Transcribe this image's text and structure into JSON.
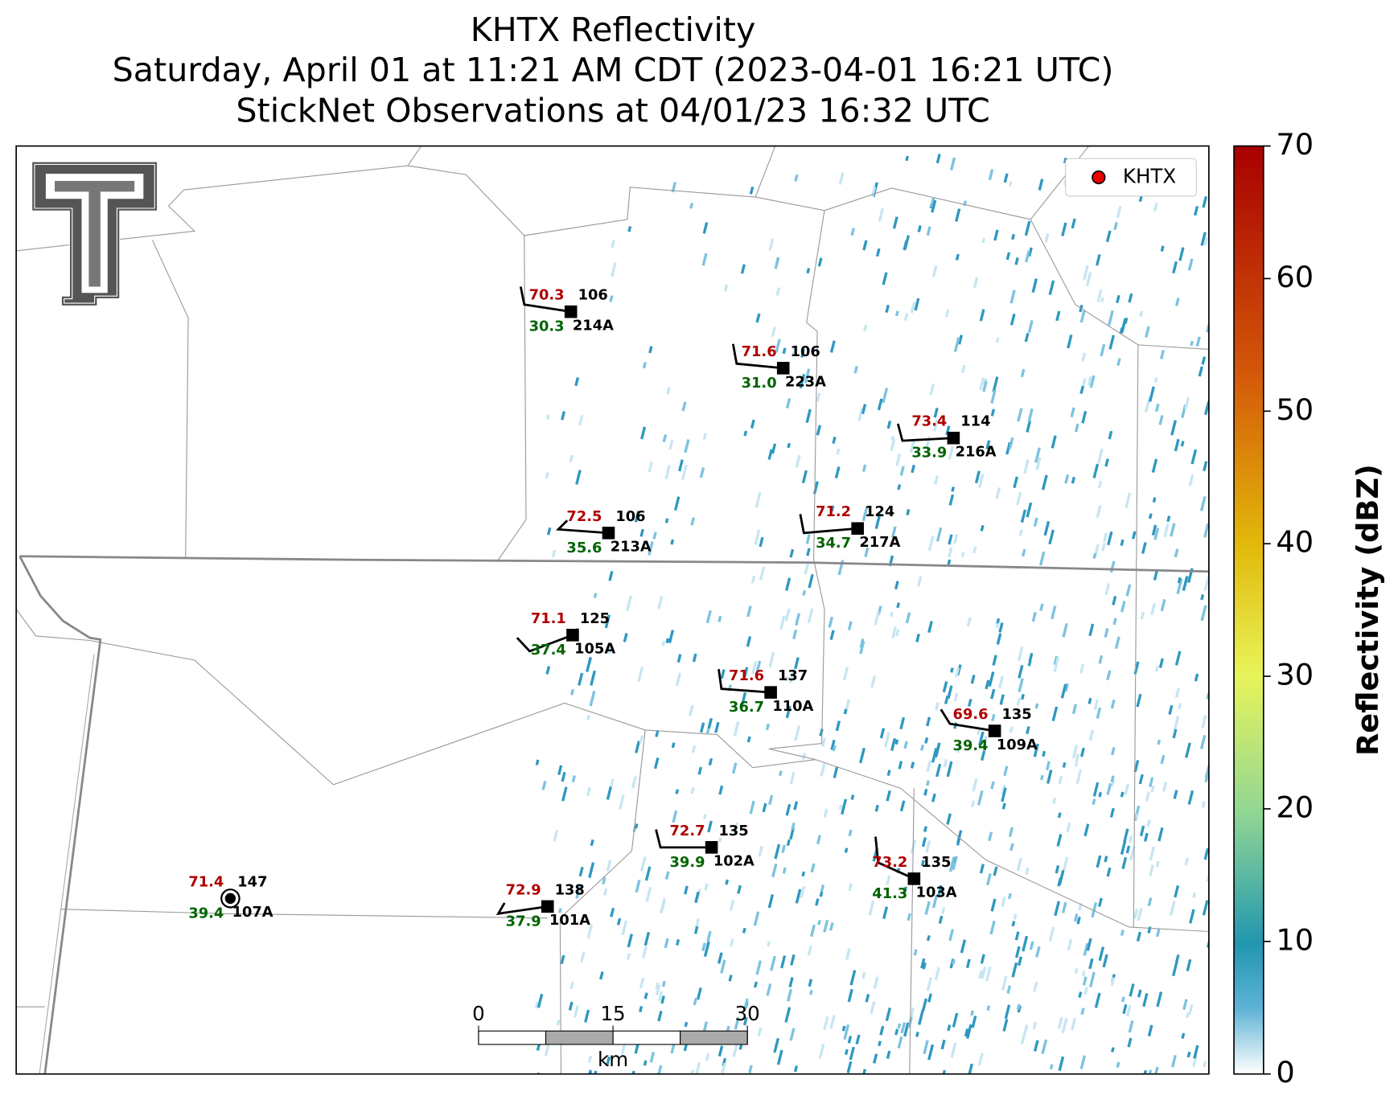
{
  "title": [
    "KHTX Reflectivity",
    "Saturday, April 01 at 11:21 AM CDT (2023-04-01 16:21 UTC)",
    "StickNet Observations at 04/01/23 16:32 UTC"
  ],
  "legend": "KHTX",
  "stations": [
    {
      "id": "214A",
      "temperature": "70.3",
      "dewpoint": "30.3",
      "value": "106"
    },
    {
      "id": "223A",
      "temperature": "71.6",
      "dewpoint": "31.0",
      "value": "106"
    },
    {
      "id": "216A",
      "temperature": "73.4",
      "dewpoint": "33.9",
      "value": "114"
    },
    {
      "id": "213A",
      "temperature": "72.5",
      "dewpoint": "35.6",
      "value": "106"
    },
    {
      "id": "217A",
      "temperature": "71.2",
      "dewpoint": "34.7",
      "value": "124"
    },
    {
      "id": "105A",
      "temperature": "71.1",
      "dewpoint": "37.4",
      "value": "125"
    },
    {
      "id": "110A",
      "temperature": "71.6",
      "dewpoint": "36.7",
      "value": "137"
    },
    {
      "id": "109A",
      "temperature": "69.6",
      "dewpoint": "39.4",
      "value": "135"
    },
    {
      "id": "102A",
      "temperature": "72.7",
      "dewpoint": "39.9",
      "value": "135"
    },
    {
      "id": "103A",
      "temperature": "73.2",
      "dewpoint": "41.3",
      "value": "135"
    },
    {
      "id": "107A",
      "temperature": "71.4",
      "dewpoint": "39.4",
      "value": "147"
    },
    {
      "id": "101A",
      "temperature": "72.9",
      "dewpoint": "37.9",
      "value": "138"
    }
  ],
  "colorbar": {
    "label": "Reflectivity (dBZ)",
    "lim": [
      0,
      70
    ],
    "ticks": [
      0,
      10,
      20,
      30,
      40,
      50,
      60,
      70
    ]
  },
  "scalebar": {
    "unit": "km",
    "lim": [
      0,
      30
    ],
    "ticks": [
      0,
      15,
      30
    ]
  }
}
